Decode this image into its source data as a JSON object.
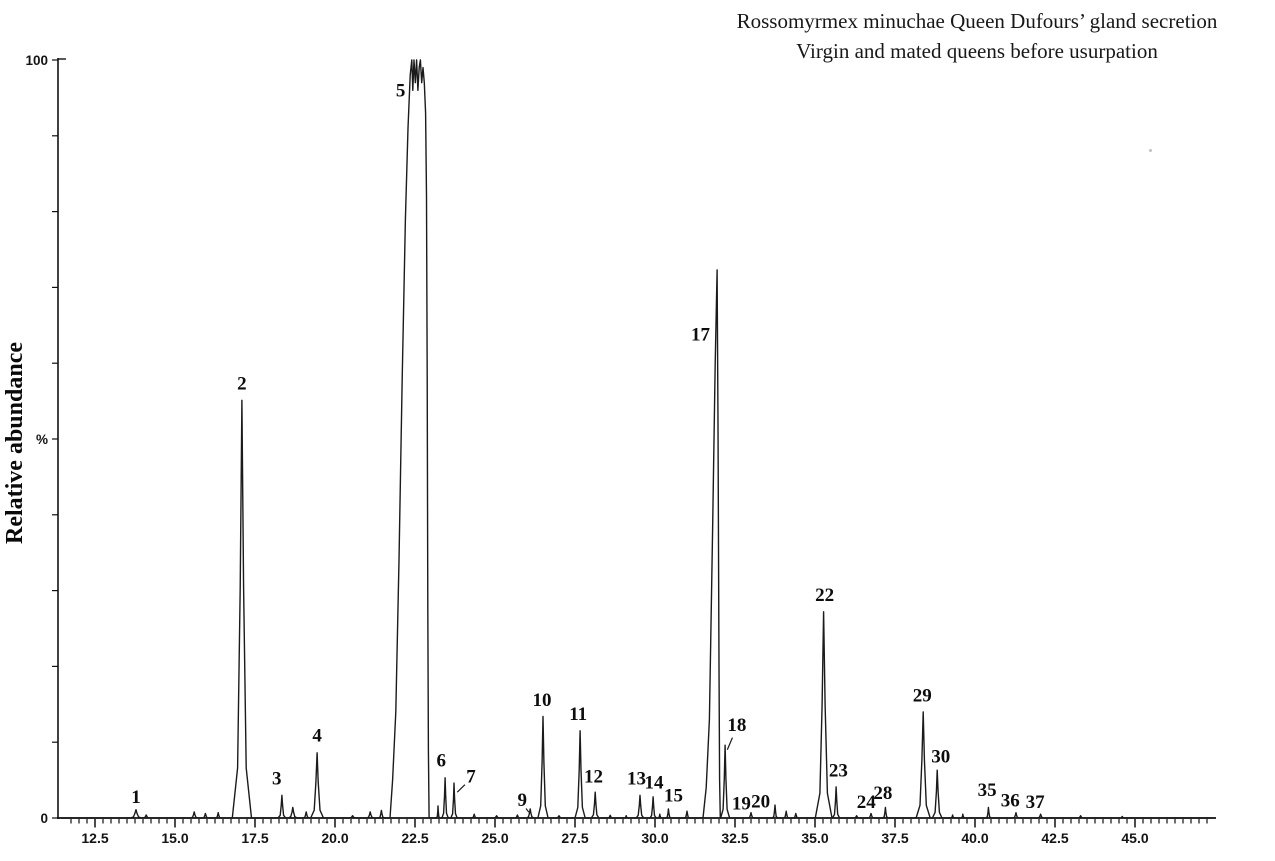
{
  "chart_data": {
    "type": "line",
    "chart_kind": "gc-chromatogram",
    "title": "Rossomyrmex minuchae Queen Dufours’ gland secretion",
    "subtitle": "Virgin and mated queens before usurpation",
    "ylabel": "Relative abundance",
    "y_axis_labels": [
      {
        "value": 100,
        "text": "100"
      },
      {
        "value": 50,
        "text": "%"
      },
      {
        "value": 0,
        "text": "0"
      }
    ],
    "x_range": [
      11.45,
      47.4
    ],
    "y_range": [
      0,
      100
    ],
    "grid": false,
    "x_ticks_major": [
      12.5,
      15.0,
      17.5,
      20.0,
      22.5,
      25.0,
      27.5,
      30.0,
      32.5,
      35.0,
      37.5,
      40.0,
      42.5,
      45.0
    ],
    "x_tick_labels": [
      "12.5",
      "15.0",
      "17.5",
      "20.0",
      "22.5",
      "25.0",
      "27.5",
      "30.0",
      "32.5",
      "35.0",
      "37.5",
      "40.0",
      "42.5",
      "45.0"
    ],
    "x_minor_step": 0.25,
    "y_tick_step": 10,
    "peaks": [
      {
        "n": "1",
        "t": 13.78,
        "h": 1.1,
        "w": 0.18,
        "label_t": 13.78,
        "label_h": 2.0
      },
      {
        "n": "2",
        "t": 17.09,
        "h": 55.1,
        "w": 0.3,
        "label_t": 17.09,
        "label_h": 56.5
      },
      {
        "n": "3",
        "t": 18.34,
        "h": 3.0,
        "w": 0.12,
        "label_t": 18.18,
        "label_h": 4.4
      },
      {
        "n": "4",
        "t": 19.44,
        "h": 8.6,
        "w": 0.2,
        "label_t": 19.44,
        "label_h": 10.1
      },
      {
        "n": "5",
        "points": [
          [
            21.72,
            0
          ],
          [
            21.8,
            5
          ],
          [
            21.9,
            14
          ],
          [
            22.0,
            34
          ],
          [
            22.1,
            58
          ],
          [
            22.2,
            79
          ],
          [
            22.28,
            91
          ],
          [
            22.35,
            98
          ],
          [
            22.4,
            100
          ],
          [
            22.43,
            96
          ],
          [
            22.47,
            100
          ],
          [
            22.51,
            97
          ],
          [
            22.55,
            100
          ],
          [
            22.59,
            96
          ],
          [
            22.63,
            99
          ],
          [
            22.67,
            100
          ],
          [
            22.71,
            97
          ],
          [
            22.75,
            99
          ],
          [
            22.79,
            97
          ],
          [
            22.83,
            93
          ],
          [
            22.86,
            82
          ],
          [
            22.88,
            58
          ],
          [
            22.9,
            28
          ],
          [
            22.92,
            9
          ],
          [
            22.94,
            0
          ]
        ],
        "label_t": 22.05,
        "label_h": 95.2
      },
      {
        "n": "6",
        "t": 23.44,
        "h": 5.3,
        "w": 0.1,
        "label_t": 23.32,
        "label_h": 6.8
      },
      {
        "n": "7",
        "t": 23.72,
        "h": 4.6,
        "w": 0.1,
        "label_t": 24.25,
        "label_h": 4.7,
        "leader": [
          [
            24.06,
            4.4
          ],
          [
            23.82,
            3.4
          ]
        ]
      },
      {
        "n": "9",
        "t": 26.1,
        "h": 1.2,
        "w": 0.12,
        "label_t": 25.85,
        "label_h": 1.6,
        "leader": [
          [
            25.97,
            1.25
          ],
          [
            26.06,
            0.75
          ]
        ]
      },
      {
        "n": "10",
        "t": 26.5,
        "h": 13.4,
        "w": 0.16,
        "label_t": 26.47,
        "label_h": 14.8
      },
      {
        "n": "11",
        "t": 27.66,
        "h": 11.5,
        "w": 0.16,
        "label_t": 27.6,
        "label_h": 12.9
      },
      {
        "n": "12",
        "t": 28.13,
        "h": 3.4,
        "w": 0.12,
        "label_t": 28.08,
        "label_h": 4.7
      },
      {
        "n": "13",
        "t": 29.53,
        "h": 3.0,
        "w": 0.12,
        "label_t": 29.42,
        "label_h": 4.4
      },
      {
        "n": "14",
        "t": 29.94,
        "h": 2.8,
        "w": 0.1,
        "label_t": 29.97,
        "label_h": 3.9
      },
      {
        "n": "15",
        "t": 30.42,
        "h": 1.2,
        "w": 0.08,
        "label_t": 30.58,
        "label_h": 2.2
      },
      {
        "n": "17",
        "points": [
          [
            31.5,
            0
          ],
          [
            31.6,
            4
          ],
          [
            31.7,
            13
          ],
          [
            31.8,
            38
          ],
          [
            31.88,
            60
          ],
          [
            31.94,
            72.3
          ],
          [
            31.97,
            52
          ],
          [
            32.0,
            20
          ],
          [
            32.02,
            5
          ],
          [
            32.04,
            0
          ]
        ],
        "label_t": 31.42,
        "label_h": 63.0
      },
      {
        "n": "18",
        "t": 32.19,
        "h": 9.6,
        "w": 0.14,
        "label_t": 32.56,
        "label_h": 11.5,
        "leader": [
          [
            32.42,
            10.6
          ],
          [
            32.26,
            9.0
          ]
        ]
      },
      {
        "n": "19",
        "t": 33.0,
        "h": 0.7,
        "w": 0.1,
        "label_t": 32.7,
        "label_h": 1.1
      },
      {
        "n": "20",
        "t": 33.75,
        "h": 1.7,
        "w": 0.08,
        "label_t": 33.3,
        "label_h": 1.4
      },
      {
        "n": "22",
        "t": 35.27,
        "h": 27.2,
        "w": 0.26,
        "label_t": 35.3,
        "label_h": 28.6
      },
      {
        "n": "23",
        "t": 35.66,
        "h": 4.1,
        "w": 0.11,
        "label_t": 35.73,
        "label_h": 5.5
      },
      {
        "n": "24",
        "t": 36.75,
        "h": 0.6,
        "w": 0.1,
        "label_t": 36.6,
        "label_h": 1.3
      },
      {
        "n": "28",
        "t": 37.2,
        "h": 1.4,
        "w": 0.08,
        "label_t": 37.12,
        "label_h": 2.5
      },
      {
        "n": "29",
        "t": 38.38,
        "h": 14.0,
        "w": 0.22,
        "label_t": 38.35,
        "label_h": 15.4
      },
      {
        "n": "30",
        "t": 38.82,
        "h": 6.3,
        "w": 0.15,
        "label_t": 38.93,
        "label_h": 7.3
      },
      {
        "n": "35",
        "t": 40.42,
        "h": 1.4,
        "w": 0.08,
        "label_t": 40.38,
        "label_h": 2.9
      },
      {
        "n": "36",
        "t": 41.28,
        "h": 0.7,
        "w": 0.1,
        "label_t": 41.1,
        "label_h": 1.5
      },
      {
        "n": "37",
        "t": 42.05,
        "h": 0.5,
        "w": 0.1,
        "label_t": 41.88,
        "label_h": 1.3
      }
    ],
    "baseline_noise": [
      [
        14.1,
        0.4,
        0.1
      ],
      [
        15.6,
        0.8,
        0.12
      ],
      [
        15.95,
        0.6,
        0.1
      ],
      [
        16.35,
        0.7,
        0.09
      ],
      [
        18.68,
        1.4,
        0.14
      ],
      [
        19.1,
        0.8,
        0.1
      ],
      [
        20.55,
        0.3,
        0.12
      ],
      [
        21.1,
        0.8,
        0.12
      ],
      [
        21.45,
        1.0,
        0.1
      ],
      [
        23.22,
        1.6,
        0.05
      ],
      [
        24.35,
        0.5,
        0.08
      ],
      [
        25.05,
        0.3,
        0.1
      ],
      [
        25.7,
        0.4,
        0.08
      ],
      [
        27.0,
        0.3,
        0.1
      ],
      [
        28.6,
        0.35,
        0.08
      ],
      [
        29.1,
        0.3,
        0.06
      ],
      [
        30.15,
        0.5,
        0.06
      ],
      [
        31.0,
        0.9,
        0.08
      ],
      [
        34.1,
        0.9,
        0.08
      ],
      [
        34.4,
        0.6,
        0.08
      ],
      [
        36.3,
        0.3,
        0.08
      ],
      [
        39.3,
        0.4,
        0.06
      ],
      [
        39.62,
        0.5,
        0.06
      ],
      [
        43.3,
        0.3,
        0.08
      ],
      [
        44.6,
        0.2,
        0.08
      ]
    ],
    "legend": null
  }
}
